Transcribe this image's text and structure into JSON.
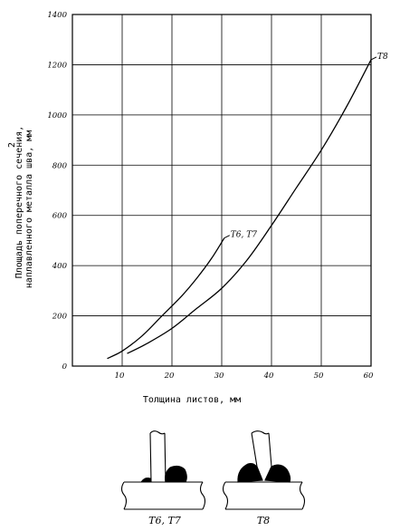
{
  "chart_data": {
    "type": "line",
    "xlabel": "Толщина листов, мм",
    "ylabel_line1": "Площадь поперечного сечения,",
    "ylabel_line2": "наплавленного металла шва, мм",
    "ylabel_superscript": "2",
    "xlim": [
      0,
      60
    ],
    "ylim": [
      0,
      1400
    ],
    "x_ticks": [
      "10",
      "20",
      "30",
      "40",
      "50",
      "60"
    ],
    "y_ticks": [
      "0",
      "200",
      "400",
      "600",
      "800",
      "1000",
      "1200",
      "1400"
    ],
    "grid": true,
    "series": [
      {
        "name": "T6, T7",
        "label_text": "T6, T7",
        "x": [
          7,
          10,
          14,
          18,
          22,
          25,
          28,
          30.5
        ],
        "y": [
          30,
          60,
          120,
          200,
          280,
          350,
          430,
          510
        ]
      },
      {
        "name": "T8",
        "label_text": "T8",
        "x": [
          11,
          15,
          20,
          25,
          30,
          35,
          40,
          45,
          50,
          55,
          60
        ],
        "y": [
          50,
          90,
          150,
          230,
          310,
          420,
          560,
          710,
          860,
          1030,
          1220
        ]
      }
    ]
  },
  "joints": {
    "left_label": "T6, T7",
    "right_label": "T8"
  }
}
